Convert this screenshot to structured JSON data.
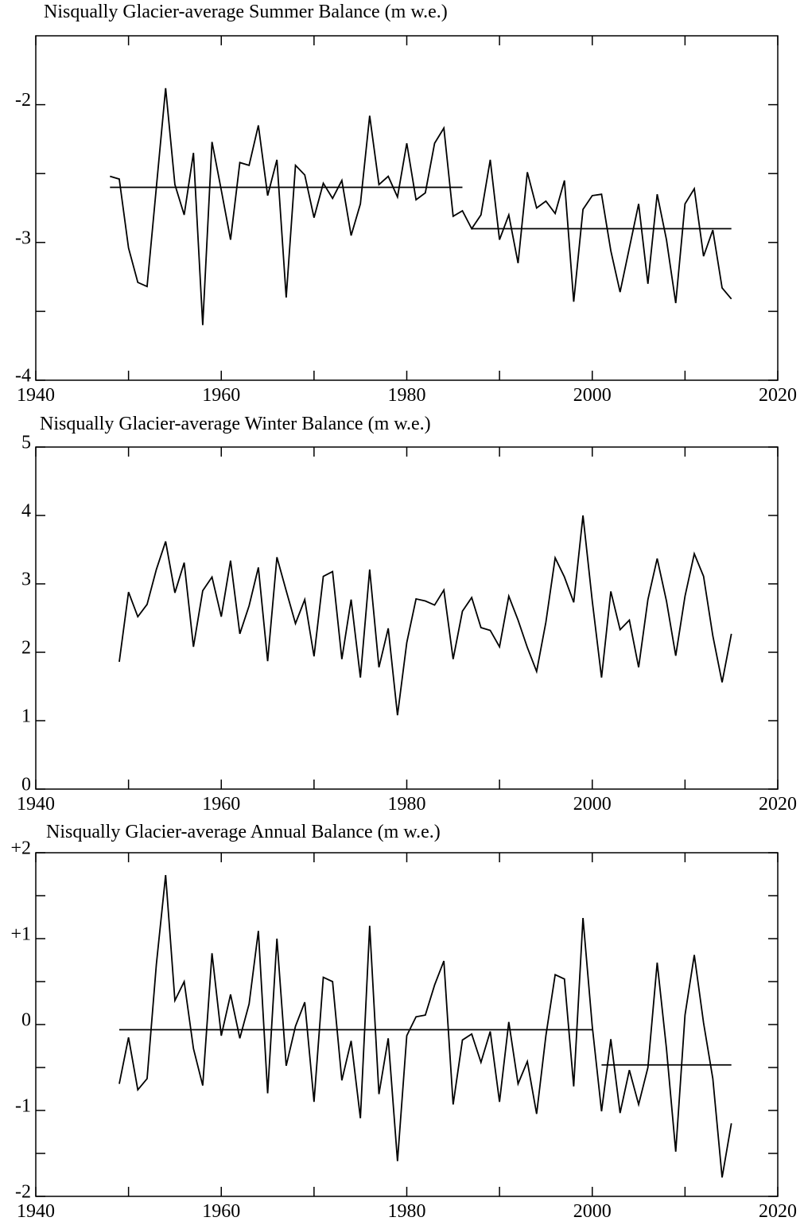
{
  "chart_data": [
    {
      "type": "line",
      "title": "Nisqually Glacier-average Summer Balance  (m w.e.)",
      "x": [
        1948,
        1949,
        1950,
        1951,
        1952,
        1953,
        1954,
        1955,
        1956,
        1957,
        1958,
        1959,
        1960,
        1961,
        1962,
        1963,
        1964,
        1965,
        1966,
        1967,
        1968,
        1969,
        1970,
        1971,
        1972,
        1973,
        1974,
        1975,
        1976,
        1977,
        1978,
        1979,
        1980,
        1981,
        1982,
        1983,
        1984,
        1985,
        1986,
        1987,
        1988,
        1989,
        1990,
        1991,
        1992,
        1993,
        1994,
        1995,
        1996,
        1997,
        1998,
        1999,
        2000,
        2001,
        2002,
        2003,
        2004,
        2005,
        2006,
        2007,
        2008,
        2009,
        2010,
        2011,
        2012,
        2013,
        2014,
        2015
      ],
      "series": [
        {
          "color": "#000000",
          "values": [
            -2.52,
            -2.54,
            -3.04,
            -3.29,
            -3.32,
            -2.6,
            -1.88,
            -2.58,
            -2.8,
            -2.35,
            -3.6,
            -2.27,
            -2.62,
            -2.98,
            -2.42,
            -2.44,
            -2.15,
            -2.66,
            -2.4,
            -3.4,
            -2.44,
            -2.51,
            -2.82,
            -2.57,
            -2.68,
            -2.55,
            -2.95,
            -2.72,
            -2.08,
            -2.58,
            -2.52,
            -2.67,
            -2.28,
            -2.69,
            -2.64,
            -2.28,
            -2.17,
            -2.81,
            -2.77,
            -2.9,
            -2.8,
            -2.4,
            -2.98,
            -2.8,
            -3.15,
            -2.49,
            -2.75,
            -2.7,
            -2.79,
            -2.55,
            -3.43,
            -2.76,
            -2.66,
            -2.65,
            -3.06,
            -3.36,
            -3.04,
            -2.72,
            -3.3,
            -2.65,
            -2.98,
            -3.44,
            -2.72,
            -2.61,
            -3.1,
            -2.91,
            -3.33,
            -3.41
          ]
        }
      ],
      "segments": [
        {
          "x": [
            1948,
            1986
          ],
          "value": -2.6
        },
        {
          "x": [
            1987,
            2015
          ],
          "value": -2.9
        }
      ],
      "xlim": [
        1940,
        2020
      ],
      "xticks": [
        1940,
        1960,
        1980,
        2000,
        2020
      ],
      "xminor": [
        1950,
        1970,
        1990,
        2010
      ],
      "ylim": [
        -4,
        -1.5
      ],
      "yticks": [
        -4,
        -3,
        -2
      ],
      "yminor": [
        -3.5,
        -2.5
      ]
    },
    {
      "type": "line",
      "title": "Nisqually Glacier-average Winter Balance  (m w.e.)",
      "x": [
        1949,
        1950,
        1951,
        1952,
        1953,
        1954,
        1955,
        1956,
        1957,
        1958,
        1959,
        1960,
        1961,
        1962,
        1963,
        1964,
        1965,
        1966,
        1967,
        1968,
        1969,
        1970,
        1971,
        1972,
        1973,
        1974,
        1975,
        1976,
        1977,
        1978,
        1979,
        1980,
        1981,
        1982,
        1983,
        1984,
        1985,
        1986,
        1987,
        1988,
        1989,
        1990,
        1991,
        1992,
        1993,
        1994,
        1995,
        1996,
        1997,
        1998,
        1999,
        2000,
        2001,
        2002,
        2003,
        2004,
        2005,
        2006,
        2007,
        2008,
        2009,
        2010,
        2011,
        2012,
        2013,
        2014,
        2015
      ],
      "series": [
        {
          "color": "#000000",
          "values": [
            1.86,
            2.88,
            2.52,
            2.7,
            3.21,
            3.62,
            2.87,
            3.31,
            2.08,
            2.9,
            3.1,
            2.52,
            3.34,
            2.27,
            2.68,
            3.24,
            1.87,
            3.39,
            2.9,
            2.42,
            2.77,
            1.94,
            3.11,
            3.18,
            1.9,
            2.77,
            1.63,
            3.21,
            1.78,
            2.35,
            1.08,
            2.14,
            2.78,
            2.75,
            2.69,
            2.91,
            1.9,
            2.6,
            2.8,
            2.36,
            2.32,
            2.08,
            2.82,
            2.47,
            2.07,
            1.72,
            2.44,
            3.38,
            3.1,
            2.73,
            4.0,
            2.75,
            1.63,
            2.89,
            2.33,
            2.47,
            1.78,
            2.77,
            3.37,
            2.75,
            1.95,
            2.82,
            3.44,
            3.11,
            2.24,
            1.56,
            2.27
          ]
        }
      ],
      "segments": [],
      "xlim": [
        1940,
        2020
      ],
      "xticks": [
        1940,
        1960,
        1980,
        2000,
        2020
      ],
      "xminor": [
        1950,
        1970,
        1990,
        2010
      ],
      "ylim": [
        0,
        5
      ],
      "yticks": [
        0,
        1,
        2,
        3,
        4,
        5
      ],
      "yminor": []
    },
    {
      "type": "line",
      "title": "Nisqually Glacier-average Annual Balance  (m w.e.)",
      "x": [
        1949,
        1950,
        1951,
        1952,
        1953,
        1954,
        1955,
        1956,
        1957,
        1958,
        1959,
        1960,
        1961,
        1962,
        1963,
        1964,
        1965,
        1966,
        1967,
        1968,
        1969,
        1970,
        1971,
        1972,
        1973,
        1974,
        1975,
        1976,
        1977,
        1978,
        1979,
        1980,
        1981,
        1982,
        1983,
        1984,
        1985,
        1986,
        1987,
        1988,
        1989,
        1990,
        1991,
        1992,
        1993,
        1994,
        1995,
        1996,
        1997,
        1998,
        1999,
        2000,
        2001,
        2002,
        2003,
        2004,
        2005,
        2006,
        2007,
        2008,
        2009,
        2010,
        2011,
        2012,
        2013,
        2014,
        2015
      ],
      "series": [
        {
          "color": "#000000",
          "values": [
            -0.69,
            -0.15,
            -0.76,
            -0.63,
            0.7,
            1.74,
            0.28,
            0.5,
            -0.28,
            -0.71,
            0.83,
            -0.13,
            0.35,
            -0.16,
            0.24,
            1.09,
            -0.8,
            1.0,
            -0.48,
            -0.02,
            0.26,
            -0.9,
            0.55,
            0.5,
            -0.65,
            -0.19,
            -1.09,
            1.15,
            -0.81,
            -0.16,
            -1.59,
            -0.13,
            0.09,
            0.11,
            0.46,
            0.74,
            -0.93,
            -0.18,
            -0.11,
            -0.44,
            -0.08,
            -0.9,
            0.03,
            -0.69,
            -0.43,
            -1.04,
            -0.13,
            0.58,
            0.53,
            -0.72,
            1.24,
            -0.02,
            -1.01,
            -0.17,
            -1.03,
            -0.53,
            -0.93,
            -0.5,
            0.72,
            -0.28,
            -1.48,
            0.11,
            0.81,
            0.02,
            -0.63,
            -1.78,
            -1.15
          ]
        }
      ],
      "segments": [
        {
          "x": [
            1949,
            2000
          ],
          "value": -0.06
        },
        {
          "x": [
            2001,
            2015
          ],
          "value": -0.47
        }
      ],
      "xlim": [
        1940,
        2020
      ],
      "xticks": [
        1940,
        1960,
        1980,
        2000,
        2020
      ],
      "xminor": [
        1950,
        1970,
        1990,
        2010
      ],
      "ylim": [
        -2,
        2
      ],
      "yticks": [
        {
          "value": -2,
          "label": "-2"
        },
        {
          "value": -1,
          "label": "-1"
        },
        0,
        {
          "value": 1,
          "label": "+1"
        },
        {
          "value": 2,
          "label": "+2"
        }
      ],
      "yminor": [
        -1.5,
        -0.5,
        0.5,
        1.5
      ]
    }
  ]
}
